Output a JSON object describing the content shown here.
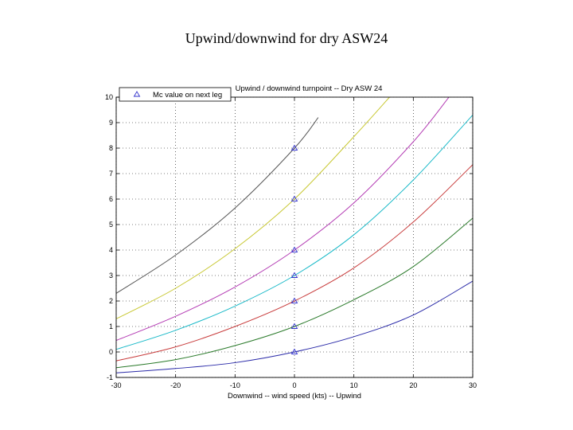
{
  "slide": {
    "title": "Upwind/downwind for dry ASW24"
  },
  "chart_data": {
    "type": "line",
    "title": "Upwind / downwind turnpoint -- Dry ASW 24",
    "xlabel": "Downwind -- wind speed (kts) -- Upwind",
    "ylabel": "",
    "xlim": [
      -30,
      30
    ],
    "ylim": [
      -1,
      10
    ],
    "xticks": [
      -30,
      -20,
      -10,
      0,
      10,
      20,
      30
    ],
    "yticks": [
      -1,
      0,
      1,
      2,
      3,
      4,
      5,
      6,
      7,
      8,
      9,
      10
    ],
    "grid": true,
    "legend": {
      "position": "top-left",
      "entries": [
        {
          "label": "Mc value on next leg",
          "marker": "triangle"
        }
      ]
    },
    "marker_series": {
      "name": "Mc value on next leg",
      "color": "#3333cc",
      "x": [
        0,
        0,
        0,
        0,
        0,
        0,
        0
      ],
      "y": [
        0,
        1,
        2,
        3,
        4,
        6,
        8
      ]
    },
    "series": [
      {
        "color": "#2a2aa8",
        "x": [
          -30,
          -20,
          -10,
          0,
          10,
          20,
          30
        ],
        "y": [
          -0.82,
          -0.65,
          -0.42,
          0,
          0.6,
          1.45,
          2.78
        ]
      },
      {
        "color": "#2a7a2a",
        "x": [
          -30,
          -20,
          -10,
          0,
          10,
          20,
          30
        ],
        "y": [
          -0.62,
          -0.3,
          0.25,
          1,
          2.05,
          3.35,
          5.25
        ]
      },
      {
        "color": "#c83c3c",
        "x": [
          -30,
          -20,
          -10,
          0,
          10,
          20,
          30
        ],
        "y": [
          -0.35,
          0.2,
          1.0,
          2,
          3.3,
          5.1,
          7.35
        ]
      },
      {
        "color": "#19b9c8",
        "x": [
          -30,
          -20,
          -10,
          0,
          10,
          20,
          30
        ],
        "y": [
          0.1,
          0.85,
          1.8,
          3,
          4.6,
          6.75,
          9.3
        ]
      },
      {
        "color": "#b43cb4",
        "x": [
          -30,
          -20,
          -10,
          0,
          10,
          20,
          26
        ],
        "y": [
          0.45,
          1.4,
          2.55,
          4,
          5.85,
          8.25,
          10.0
        ]
      },
      {
        "color": "#c8c832",
        "x": [
          -30,
          -20,
          -10,
          0,
          10,
          16
        ],
        "y": [
          1.3,
          2.5,
          4.05,
          6,
          8.45,
          10.0
        ]
      },
      {
        "color": "#555555",
        "x": [
          -30,
          -20,
          -10,
          0,
          4
        ],
        "y": [
          2.3,
          3.8,
          5.65,
          8,
          9.2
        ]
      }
    ]
  }
}
